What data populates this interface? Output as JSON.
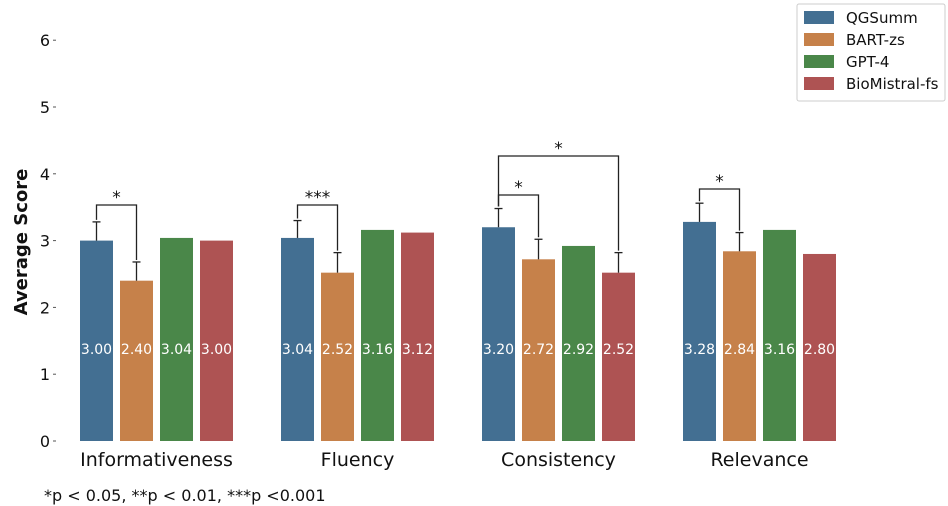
{
  "chart_data": {
    "type": "bar",
    "title": "",
    "xlabel": "",
    "ylabel": "Average  Score",
    "ylim": [
      0,
      6
    ],
    "yticks": [
      "0",
      "1",
      "2",
      "3",
      "4",
      "5",
      "6"
    ],
    "grid": false,
    "legend_position": "top-right",
    "categories": [
      "Informativeness",
      "Fluency",
      "Consistency",
      "Relevance"
    ],
    "series": [
      {
        "name": "QGSumm",
        "color": "#436f92",
        "values": [
          3.0,
          3.04,
          3.2,
          3.28
        ],
        "labels": [
          "3.00",
          "3.04",
          "3.20",
          "3.28"
        ],
        "errors": [
          0.28,
          0.26,
          0.28,
          0.28
        ]
      },
      {
        "name": "BART-zs",
        "color": "#c6814a",
        "values": [
          2.4,
          2.52,
          2.72,
          2.84
        ],
        "labels": [
          "2.40",
          "2.52",
          "2.72",
          "2.84"
        ],
        "errors": [
          0.28,
          0.3,
          0.3,
          0.28
        ]
      },
      {
        "name": "GPT-4",
        "color": "#4a8749",
        "values": [
          3.04,
          3.16,
          2.92,
          3.16
        ],
        "labels": [
          "3.04",
          "3.16",
          "2.92",
          "3.16"
        ],
        "errors": [
          null,
          null,
          null,
          null
        ]
      },
      {
        "name": "BioMistral-fs",
        "color": "#ae5353",
        "values": [
          3.0,
          3.12,
          2.52,
          2.8
        ],
        "labels": [
          "3.00",
          "3.12",
          "2.52",
          "2.80"
        ],
        "errors": [
          null,
          null,
          0.3,
          null
        ]
      }
    ],
    "significance": [
      {
        "category": 0,
        "from": 0,
        "to": 1,
        "stars": "*"
      },
      {
        "category": 1,
        "from": 0,
        "to": 1,
        "stars": "***"
      },
      {
        "category": 2,
        "from": 0,
        "to": 1,
        "stars": "*"
      },
      {
        "category": 2,
        "from": 0,
        "to": 3,
        "stars": "*"
      },
      {
        "category": 3,
        "from": 0,
        "to": 1,
        "stars": "*"
      }
    ]
  },
  "footnote": "*p < 0.05, **p < 0.01, ***p <0.001"
}
